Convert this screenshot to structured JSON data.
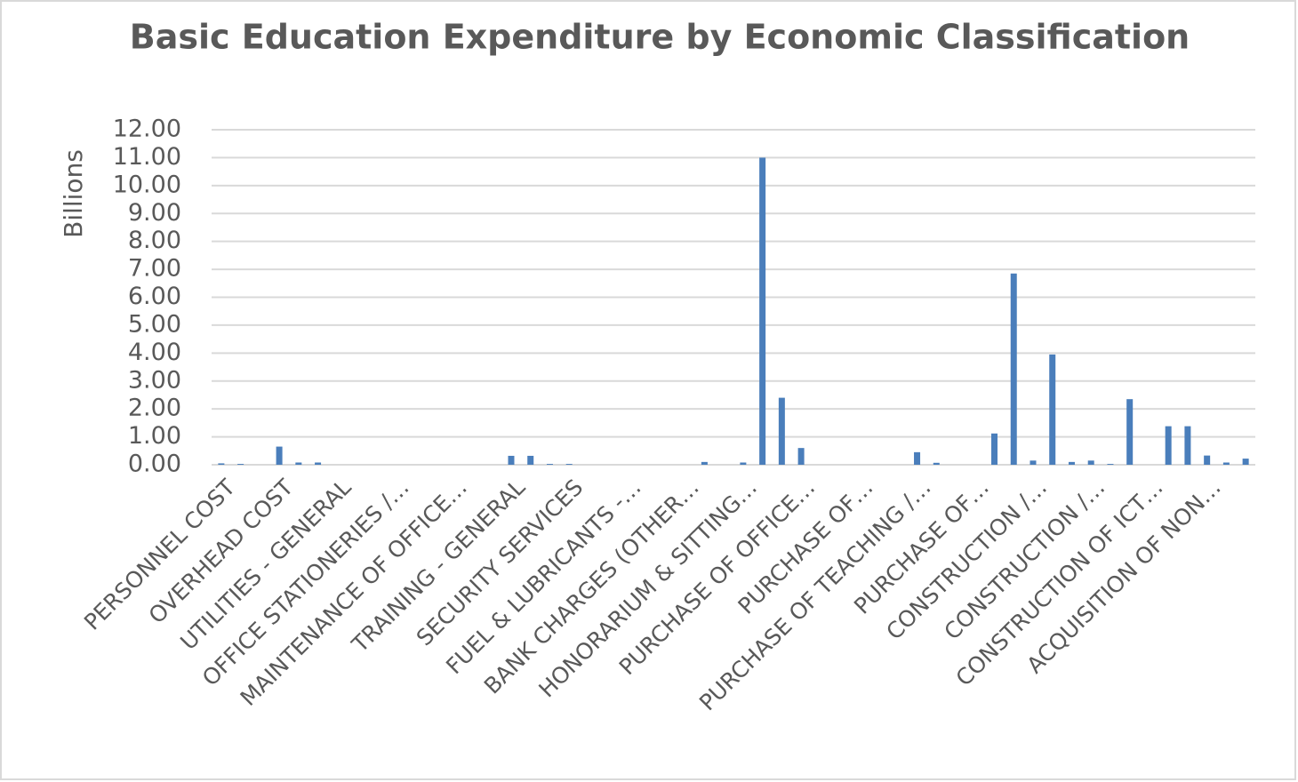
{
  "chart_data": {
    "type": "bar",
    "title": "Basic Education Expenditure by Economic Classification",
    "y_label": "Billions",
    "categories": [
      "PERSONNEL COST",
      null,
      null,
      "OVERHEAD COST",
      null,
      null,
      "UTILITIES - GENERAL",
      null,
      null,
      "OFFICE STATIONERIES /…",
      null,
      null,
      "MAINTENANCE OF OFFICE…",
      null,
      null,
      "TRAINING - GENERAL",
      null,
      null,
      "SECURITY SERVICES",
      null,
      null,
      "FUEL & LUBRICANTS -…",
      null,
      null,
      "BANK CHARGES (OTHER…",
      null,
      null,
      "HONORARIUM & SITTING…",
      null,
      null,
      "PURCHASE OF OFFICE…",
      null,
      null,
      "PURCHASE OF…",
      null,
      null,
      "PURCHASE OF TEACHING /…",
      null,
      null,
      "PURCHASE OF…",
      null,
      null,
      "CONSTRUCTION /…",
      null,
      null,
      "CONSTRUCTION /…",
      null,
      null,
      "CONSTRUCTION OF ICT…",
      null,
      null,
      "ACQUISITION OF NON…",
      null,
      null
    ],
    "values": [
      0.05,
      0.03,
      0,
      0.65,
      0.08,
      0.08,
      0,
      0,
      0,
      0,
      0,
      0,
      0,
      0,
      0,
      0.32,
      0.32,
      0.03,
      0.03,
      0,
      0,
      0,
      0,
      0,
      0,
      0.1,
      0,
      0.08,
      11.0,
      2.4,
      0.6,
      0,
      0,
      0,
      0,
      0,
      0.45,
      0.07,
      0,
      0,
      1.12,
      6.85,
      0.15,
      3.95,
      0.1,
      0.15,
      0.03,
      2.35,
      0,
      1.38,
      1.38,
      0.33,
      0.08,
      0.22
    ],
    "color": "#4a7ebb",
    "ylim": [
      0,
      12
    ],
    "yticks": [
      {
        "value": 0,
        "label": "0.00"
      },
      {
        "value": 1,
        "label": "1.00"
      },
      {
        "value": 2,
        "label": "2.00"
      },
      {
        "value": 3,
        "label": "3.00"
      },
      {
        "value": 4,
        "label": "4.00"
      },
      {
        "value": 5,
        "label": "5.00"
      },
      {
        "value": 6,
        "label": "6.00"
      },
      {
        "value": 7,
        "label": "7.00"
      },
      {
        "value": 8,
        "label": "8.00"
      },
      {
        "value": 9,
        "label": "9.00"
      },
      {
        "value": 10,
        "label": "10.00"
      },
      {
        "value": 11,
        "label": "11.00"
      },
      {
        "value": 12,
        "label": "12.00"
      }
    ],
    "grid": true
  }
}
